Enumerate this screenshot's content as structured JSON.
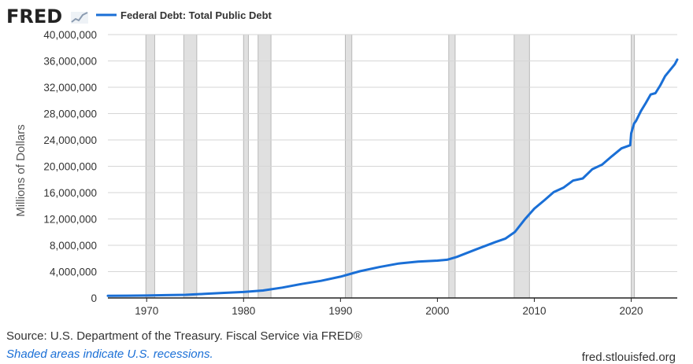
{
  "header": {
    "logo_text": "FRED",
    "legend_label": "Federal Debt: Total Public Debt"
  },
  "footer": {
    "source": "U.S. Department of the Treasury. Fiscal Service via FRED®",
    "source_prefix": "Source: ",
    "recessions_note": "Shaded areas indicate U.S. recessions.",
    "url": "fred.stlouisfed.org"
  },
  "colors": {
    "series": "#1a6fd6",
    "recession": "#e0e0e0",
    "grid": "#d6d6d6"
  },
  "chart_data": {
    "type": "line",
    "title": "Federal Debt: Total Public Debt",
    "xlabel": "",
    "ylabel": "Millions of Dollars",
    "xlim": [
      1966.0,
      2024.75
    ],
    "ylim": [
      0,
      40000000
    ],
    "y_ticks": [
      0,
      4000000,
      8000000,
      12000000,
      16000000,
      20000000,
      24000000,
      28000000,
      32000000,
      36000000,
      40000000
    ],
    "y_tick_labels": [
      "0",
      "4,000,000",
      "8,000,000",
      "12,000,000",
      "16,000,000",
      "20,000,000",
      "24,000,000",
      "28,000,000",
      "32,000,000",
      "36,000,000",
      "40,000,000"
    ],
    "x_ticks": [
      1970,
      1980,
      1990,
      2000,
      2010,
      2020
    ],
    "x_tick_labels": [
      "1970",
      "1980",
      "1990",
      "2000",
      "2010",
      "2020"
    ],
    "recessions": [
      [
        1969.92,
        1970.83
      ],
      [
        1973.83,
        1975.17
      ],
      [
        1980.0,
        1980.5
      ],
      [
        1981.5,
        1982.83
      ],
      [
        1990.5,
        1991.17
      ],
      [
        2001.17,
        2001.83
      ],
      [
        2007.92,
        2009.5
      ],
      [
        2020.0,
        2020.33
      ]
    ],
    "series": [
      {
        "name": "Federal Debt: Total Public Debt",
        "x": [
          1966,
          1968,
          1970,
          1972,
          1974,
          1976,
          1978,
          1980,
          1982,
          1984,
          1986,
          1988,
          1990,
          1992,
          1994,
          1996,
          1998,
          2000,
          2001,
          2002,
          2004,
          2006,
          2007,
          2008,
          2009,
          2010,
          2011,
          2012,
          2013,
          2014,
          2015,
          2016,
          2017,
          2018,
          2019,
          2019.9,
          2020.0,
          2020.3,
          2020.5,
          2021,
          2021.5,
          2022,
          2022.5,
          2023,
          2023.5,
          2024,
          2024.5,
          2024.75
        ],
        "values": [
          320000,
          347000,
          370000,
          427000,
          475000,
          620000,
          772000,
          907000,
          1137000,
          1572000,
          2120000,
          2602000,
          3233000,
          4065000,
          4693000,
          5225000,
          5526000,
          5674000,
          5807000,
          6228000,
          7379000,
          8507000,
          9008000,
          10025000,
          11910000,
          13562000,
          14790000,
          16066000,
          16738000,
          17824000,
          18151000,
          19573000,
          20245000,
          21516000,
          22719000,
          23200000,
          25000000,
          26500000,
          26900000,
          28400000,
          29600000,
          30900000,
          31100000,
          32300000,
          33700000,
          34600000,
          35500000,
          36200000
        ]
      }
    ]
  }
}
